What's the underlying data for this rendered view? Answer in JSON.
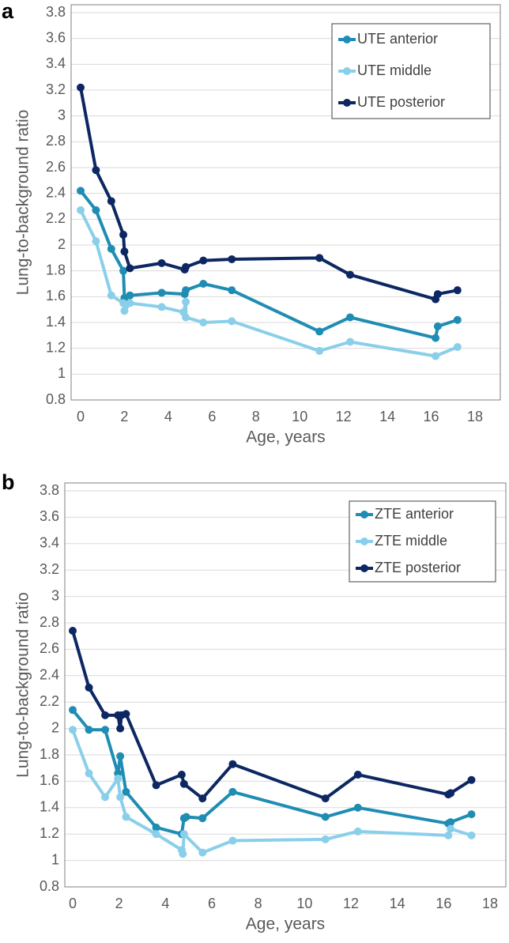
{
  "chart_data": [
    {
      "type": "line",
      "panel_label": "a",
      "x_label": "Age, years",
      "y_label": "Lung-to-background ratio",
      "xlim": [
        0,
        18
      ],
      "xticks": [
        0,
        2,
        4,
        6,
        8,
        10,
        12,
        14,
        16,
        18
      ],
      "ylim": [
        0.8,
        3.8
      ],
      "yticks": [
        0.8,
        1,
        1.2,
        1.4,
        1.6,
        1.8,
        2,
        2.2,
        2.4,
        2.6,
        2.8,
        3,
        3.2,
        3.4,
        3.6,
        3.8
      ],
      "grid": true,
      "legend": "top-right",
      "series": [
        {
          "name": "UTE anterior",
          "color": "#1f8db3",
          "x": [
            0,
            0.7,
            1.4,
            1.95,
            2.0,
            2.25,
            3.7,
            4.75,
            4.8,
            5.6,
            6.9,
            10.9,
            12.3,
            16.2,
            16.3,
            17.2
          ],
          "values": [
            2.42,
            2.27,
            1.97,
            1.8,
            1.59,
            1.61,
            1.63,
            1.62,
            1.65,
            1.7,
            1.65,
            1.33,
            1.44,
            1.28,
            1.37,
            1.42
          ]
        },
        {
          "name": "UTE middle",
          "color": "#8acfea",
          "x": [
            0,
            0.7,
            1.4,
            1.95,
            2.0,
            2.25,
            3.7,
            4.7,
            4.8,
            4.8,
            5.6,
            6.9,
            10.9,
            12.3,
            16.2,
            17.2
          ],
          "values": [
            2.27,
            2.03,
            1.61,
            1.55,
            1.49,
            1.55,
            1.52,
            1.48,
            1.56,
            1.44,
            1.4,
            1.41,
            1.18,
            1.25,
            1.14,
            1.21
          ]
        },
        {
          "name": "UTE posterior",
          "color": "#0d2762",
          "x": [
            0,
            0.7,
            1.4,
            1.95,
            2.0,
            2.25,
            3.7,
            4.75,
            4.8,
            5.6,
            6.9,
            10.9,
            12.3,
            16.2,
            16.3,
            17.2
          ],
          "values": [
            3.22,
            2.58,
            2.34,
            2.08,
            1.95,
            1.82,
            1.86,
            1.81,
            1.83,
            1.88,
            1.89,
            1.9,
            1.77,
            1.58,
            1.62,
            1.65
          ]
        }
      ]
    },
    {
      "type": "line",
      "panel_label": "b",
      "x_label": "Age, years",
      "y_label": "Lung-to-background ratio",
      "xlim": [
        0,
        18
      ],
      "xticks": [
        0,
        2,
        4,
        6,
        8,
        10,
        12,
        14,
        16,
        18
      ],
      "ylim": [
        0.8,
        3.8
      ],
      "yticks": [
        0.8,
        1,
        1.2,
        1.4,
        1.6,
        1.8,
        2,
        2.2,
        2.4,
        2.6,
        2.8,
        3,
        3.2,
        3.4,
        3.6,
        3.8
      ],
      "grid": true,
      "legend": "top-right",
      "series": [
        {
          "name": "ZTE anterior",
          "color": "#1f8db3",
          "x": [
            0,
            0.7,
            1.4,
            1.95,
            2.05,
            2.3,
            3.6,
            4.7,
            4.8,
            4.9,
            5.6,
            6.9,
            10.9,
            12.3,
            16.2,
            16.3,
            17.2
          ],
          "values": [
            2.14,
            1.99,
            1.99,
            1.66,
            1.79,
            1.52,
            1.25,
            1.2,
            1.32,
            1.33,
            1.32,
            1.52,
            1.33,
            1.4,
            1.28,
            1.29,
            1.35
          ]
        },
        {
          "name": "ZTE middle",
          "color": "#8acfea",
          "x": [
            0,
            0.7,
            1.4,
            1.95,
            2.05,
            2.3,
            3.6,
            4.7,
            4.75,
            4.8,
            5.6,
            6.9,
            10.9,
            12.3,
            16.2,
            16.3,
            17.2
          ],
          "values": [
            1.99,
            1.66,
            1.48,
            1.62,
            1.48,
            1.33,
            1.2,
            1.08,
            1.05,
            1.2,
            1.06,
            1.15,
            1.16,
            1.22,
            1.19,
            1.24,
            1.19
          ]
        },
        {
          "name": "ZTE posterior",
          "color": "#0d2762",
          "x": [
            0,
            0.7,
            1.4,
            1.95,
            2.05,
            2.1,
            2.3,
            3.6,
            4.7,
            4.8,
            5.6,
            6.9,
            10.9,
            12.3,
            16.2,
            16.3,
            17.2
          ],
          "values": [
            2.74,
            2.31,
            2.1,
            2.1,
            2.0,
            2.1,
            2.11,
            1.57,
            1.65,
            1.58,
            1.47,
            1.73,
            1.47,
            1.65,
            1.5,
            1.51,
            1.61
          ]
        }
      ]
    }
  ]
}
